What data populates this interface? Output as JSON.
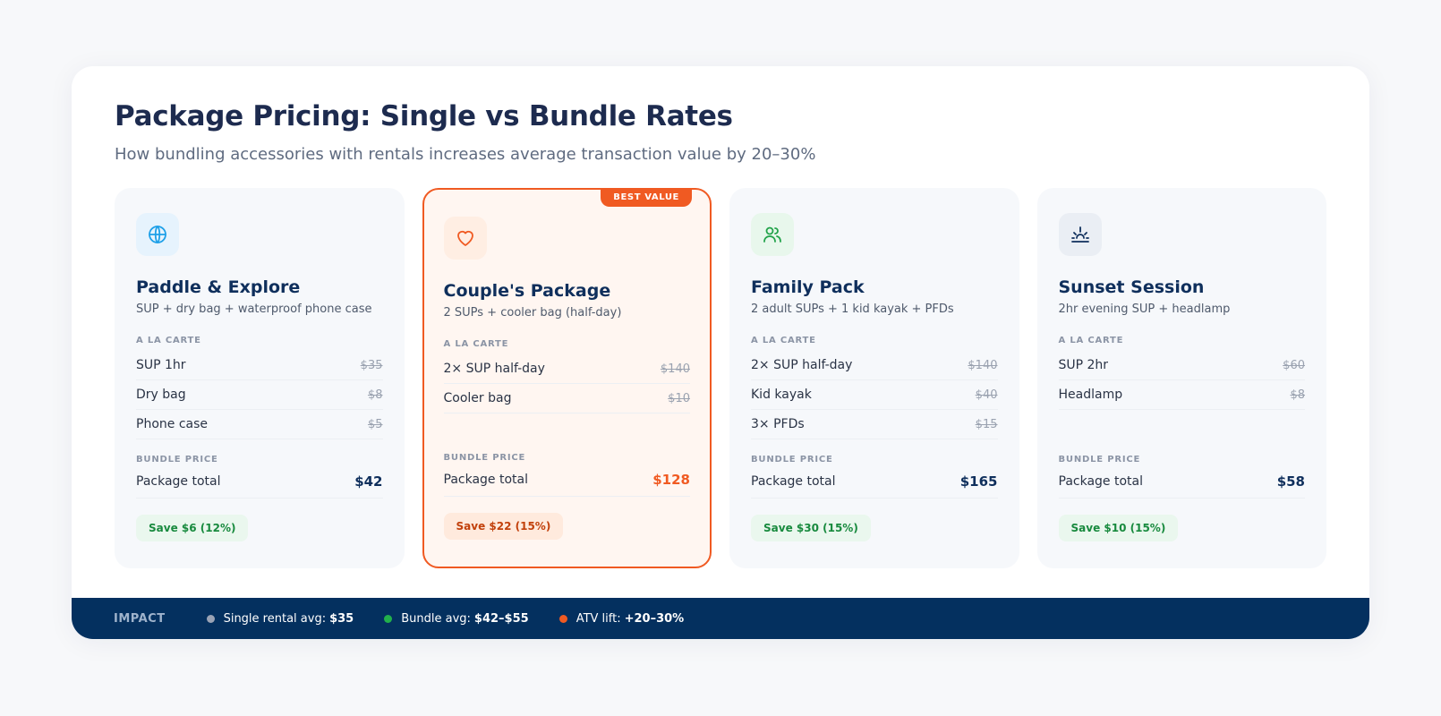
{
  "header": {
    "title": "Package Pricing: Single vs Bundle Rates",
    "subtitle": "How bundling accessories with rentals increases average transaction value by 20–30%"
  },
  "labels": {
    "a_la_carte": "A LA CARTE",
    "bundle_price": "BUNDLE PRICE",
    "package_total": "Package total"
  },
  "cards": [
    {
      "icon": "globe-icon",
      "icon_color": "#1ea0e8",
      "icon_bg": "#e6f3fd",
      "title": "Paddle & Explore",
      "desc": "SUP + dry bag + waterproof phone case",
      "items": [
        {
          "name": "SUP 1hr",
          "price": "$35"
        },
        {
          "name": "Dry bag",
          "price": "$8"
        },
        {
          "name": "Phone case",
          "price": "$5"
        }
      ],
      "total": "$42",
      "save": "Save $6 (12%)"
    },
    {
      "icon": "heart-icon",
      "icon_color": "#f05a22",
      "icon_bg": "#ffeee3",
      "title": "Couple's Package",
      "desc": "2 SUPs + cooler bag (half-day)",
      "badge": "BEST VALUE",
      "featured": true,
      "items": [
        {
          "name": "2× SUP half-day",
          "price": "$140"
        },
        {
          "name": "Cooler bag",
          "price": "$10"
        }
      ],
      "total": "$128",
      "save": "Save $22 (15%)"
    },
    {
      "icon": "users-icon",
      "icon_color": "#22a34a",
      "icon_bg": "#e8f7ec",
      "title": "Family Pack",
      "desc": "2 adult SUPs + 1 kid kayak + PFDs",
      "items": [
        {
          "name": "2× SUP half-day",
          "price": "$140"
        },
        {
          "name": "Kid kayak",
          "price": "$40"
        },
        {
          "name": "3× PFDs",
          "price": "$15"
        }
      ],
      "total": "$165",
      "save": "Save $30 (15%)"
    },
    {
      "icon": "sunset-icon",
      "icon_color": "#0f2f5c",
      "icon_bg": "#eaeef4",
      "title": "Sunset Session",
      "desc": "2hr evening SUP + headlamp",
      "items": [
        {
          "name": "SUP 2hr",
          "price": "$60"
        },
        {
          "name": "Headlamp",
          "price": "$8"
        }
      ],
      "total": "$58",
      "save": "Save $10 (15%)"
    }
  ],
  "footer": {
    "label": "IMPACT",
    "stats": [
      {
        "label": "Single rental avg:",
        "value": "$35",
        "color": "#9aa3b5"
      },
      {
        "label": "Bundle avg:",
        "value": "$42–$55",
        "color": "#22b04b"
      },
      {
        "label": "ATV lift:",
        "value": "+20–30%",
        "color": "#f05a22"
      }
    ]
  }
}
